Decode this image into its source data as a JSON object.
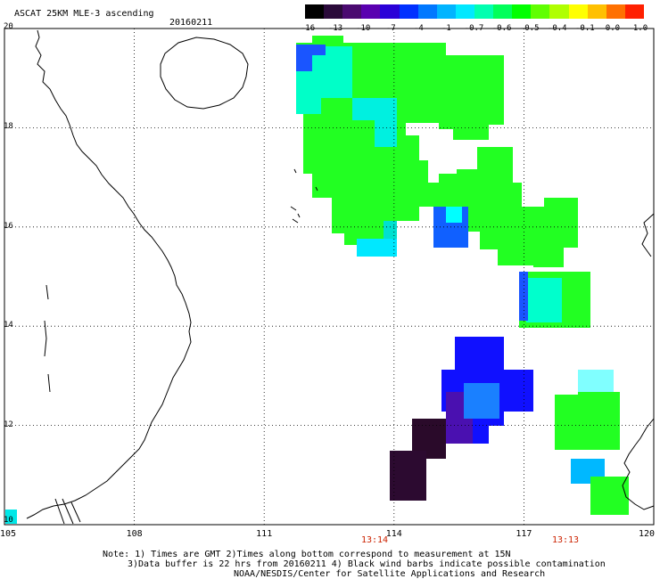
{
  "header": {
    "title": "ASCAT 25KM MLE-3 ascending",
    "date": "20160211"
  },
  "colorbar": {
    "colors": [
      "#000000",
      "#2a0a3a",
      "#4a0a70",
      "#5a00b0",
      "#2a00d8",
      "#0030ff",
      "#0078ff",
      "#00b4ff",
      "#00e8ff",
      "#00ffb0",
      "#00ff5a",
      "#00ff00",
      "#60ff00",
      "#b0ff00",
      "#ffff00",
      "#ffc000",
      "#ff7000",
      "#ff2000"
    ],
    "labels": [
      "-16",
      "-13",
      "-10",
      "-7",
      "-4",
      "-1",
      "-0.7",
      "-0.6",
      "-0.5",
      "-0.4",
      "-0.1",
      "0.0",
      "1.0"
    ]
  },
  "axes": {
    "x_ticks": [
      "105",
      "108",
      "111",
      "114",
      "117",
      "120"
    ],
    "y_ticks": [
      "20",
      "18",
      "16",
      "14",
      "12",
      "10"
    ],
    "xlim": [
      105,
      120
    ],
    "ylim": [
      10,
      20
    ]
  },
  "times": [
    "13:14",
    "13:13"
  ],
  "notes": [
    "Note: 1) Times are GMT 2)Times along bottom correspond to measurement at 15N",
    "3)Data buffer is 22 hrs from 20160211 4) Black wind barbs indicate possible contamination",
    "NOAA/NESDIS/Center for Satellite Applications and Research"
  ],
  "colors": {
    "land_outline": "#000000",
    "grid": "#000000",
    "time_label": "#cc2200"
  }
}
